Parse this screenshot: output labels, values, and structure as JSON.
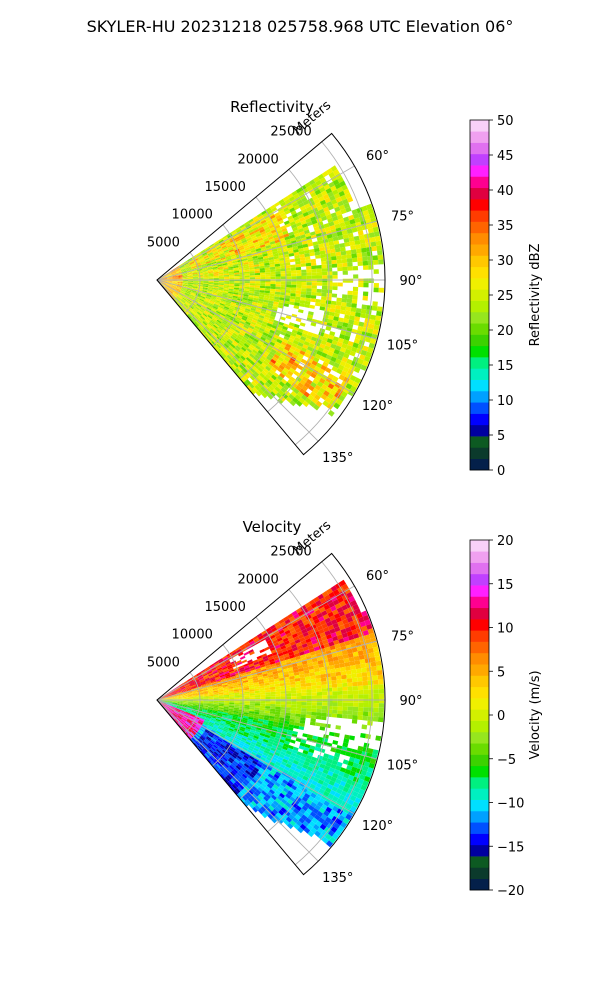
{
  "suptitle": "SKYLER-HU  20231218  025758.968 UTC Elevation 06°",
  "chart_data": [
    {
      "type": "heatmap",
      "projection": "polar-sector",
      "title": "Reflectivity",
      "radial_label": "Meters",
      "radial_ticks": [
        5000,
        10000,
        15000,
        20000,
        25000
      ],
      "radial_tick_labels": [
        "5000",
        "10000",
        "15000",
        "20000",
        "25000"
      ],
      "angle_range_deg": [
        50,
        140
      ],
      "angular_ticks_deg": [
        60,
        75,
        90,
        105,
        120,
        135
      ],
      "angular_tick_labels": [
        "60°",
        "75°",
        "90°",
        "105°",
        "120°",
        "135°"
      ],
      "grid": true,
      "colorbar": {
        "label": "Reflectivity dBZ",
        "min": 0,
        "max": 50,
        "ticks": [
          0,
          5,
          10,
          15,
          20,
          25,
          30,
          35,
          40,
          45,
          50
        ],
        "tick_labels": [
          "0",
          "5",
          "10",
          "15",
          "20",
          "25",
          "30",
          "35",
          "40",
          "45",
          "50"
        ],
        "colors": [
          "#04204a",
          "#0b3a2c",
          "#0d5a22",
          "#0000a0",
          "#0000ff",
          "#0050ff",
          "#00a0ff",
          "#00dfff",
          "#00f0c0",
          "#00f080",
          "#00e000",
          "#3cd200",
          "#6adc00",
          "#96e61e",
          "#b4f000",
          "#d2f000",
          "#f0f000",
          "#ffe000",
          "#ffc800",
          "#ffa800",
          "#ff8c00",
          "#ff6400",
          "#ff3c00",
          "#ff0000",
          "#e00040",
          "#ff0090",
          "#ff20ff",
          "#c040ff",
          "#e070f0",
          "#f0a0f0",
          "#f8d0f8"
        ]
      },
      "data_summary": "radar reflectivity values in dBZ over a sector from about 55° to 138°, range 0-26000 m; mostly 20-30 dBZ with 30-40 dBZ bands"
    },
    {
      "type": "heatmap",
      "projection": "polar-sector",
      "title": "Velocity",
      "radial_label": "Meters",
      "radial_ticks": [
        5000,
        10000,
        15000,
        20000,
        25000
      ],
      "radial_tick_labels": [
        "5000",
        "10000",
        "15000",
        "20000",
        "25000"
      ],
      "angle_range_deg": [
        50,
        140
      ],
      "angular_ticks_deg": [
        60,
        75,
        90,
        105,
        120,
        135
      ],
      "angular_tick_labels": [
        "60°",
        "75°",
        "90°",
        "105°",
        "120°",
        "135°"
      ],
      "grid": true,
      "colorbar": {
        "label": "Velocity (m/s)",
        "min": -20,
        "max": 20,
        "ticks": [
          -20,
          -15,
          -10,
          -5,
          0,
          5,
          10,
          15,
          20
        ],
        "tick_labels": [
          "−20",
          "−15",
          "−10",
          "−5",
          "0",
          "5",
          "10",
          "15",
          "20"
        ],
        "colors": [
          "#04204a",
          "#0b3a2c",
          "#0d5a22",
          "#0000a0",
          "#0000ff",
          "#0050ff",
          "#00a0ff",
          "#00dfff",
          "#00f0c0",
          "#00f080",
          "#00e000",
          "#3cd200",
          "#6adc00",
          "#96e61e",
          "#b4f000",
          "#d2f000",
          "#f0f000",
          "#ffe000",
          "#ffc800",
          "#ffa800",
          "#ff8c00",
          "#ff6400",
          "#ff3c00",
          "#ff0000",
          "#e00040",
          "#ff0090",
          "#ff20ff",
          "#c040ff",
          "#e070f0",
          "#f0a0f0",
          "#f8d0f8"
        ]
      },
      "data_summary": "Doppler velocity values in m/s over a sector from about 55° to 138°, range 0-26000 m; positive 5-15 m/s north of 85°, negative -5 to -15 m/s south of 100°"
    }
  ]
}
